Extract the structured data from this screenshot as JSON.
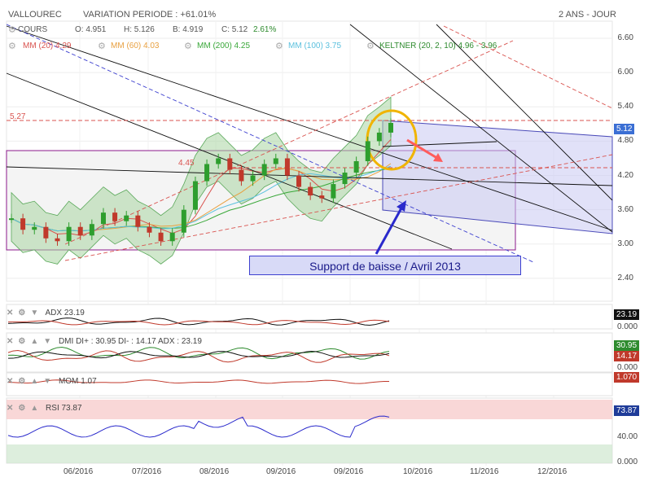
{
  "header": {
    "ticker": "VALLOUREC",
    "variation": "VARIATION PERIODE : +61.01%",
    "period": "2 ANS - JOUR",
    "cours_label": "COURS",
    "open": "O: 4.951",
    "high": "H: 5.126",
    "low": "B: 4.919",
    "close": "C: 5.12",
    "change": "2.61%"
  },
  "indicators": [
    {
      "label": "MM (20) 4.29",
      "color": "#d9534f"
    },
    {
      "label": "MM (60) 4.03",
      "color": "#e8a040"
    },
    {
      "label": "MM (200) 4.25",
      "color": "#3aa83a"
    },
    {
      "label": "MM (100) 3.75",
      "color": "#5bc0de"
    },
    {
      "label": "KELTNER (20, 2, 10) 4.96 - 3.96",
      "color": "#2e8b2e"
    }
  ],
  "annotations": {
    "level_527": "5.27",
    "level_445": "4.45",
    "callout": "Support de baisse / Avril 2013"
  },
  "price_tag": "5.12",
  "panes": {
    "adx": {
      "label": "ADX",
      "value": "23.19",
      "tag": "23.19",
      "zero": "0.000"
    },
    "dmi": {
      "label": "DMI",
      "text": "DI+ : 30.95 DI- : 14.17 ADX : 23.19",
      "tag_plus": "30.95",
      "tag_minus": "14.17",
      "zero": "0.000"
    },
    "mom": {
      "label": "MOM",
      "value": "1.07",
      "tag": "1.070"
    },
    "rsi": {
      "label": "RSI",
      "value": "73.87",
      "tag": "73.87",
      "mid": "40.00",
      "zero": "0.000"
    }
  },
  "chart_data": {
    "type": "line",
    "title": "VALLOUREC",
    "ylim": [
      2.0,
      6.9
    ],
    "y_ticks": [
      "6.60",
      "6.00",
      "5.40",
      "4.80",
      "4.20",
      "3.60",
      "3.00",
      "2.40"
    ],
    "x_ticks": [
      "06/2016",
      "07/2016",
      "08/2016",
      "09/2016",
      "09/2016",
      "10/2016",
      "11/2016",
      "12/2016"
    ],
    "series": [
      {
        "name": "COURS",
        "values": [
          3.45,
          3.25,
          3.3,
          3.1,
          3.05,
          3.3,
          3.15,
          3.35,
          3.55,
          3.4,
          3.5,
          3.3,
          3.2,
          3.05,
          3.2,
          3.6,
          4.1,
          4.4,
          4.5,
          4.3,
          4.1,
          4.2,
          4.4,
          4.5,
          4.2,
          4.0,
          3.85,
          3.8,
          4.05,
          4.25,
          4.45,
          4.8,
          4.95,
          5.12
        ]
      }
    ]
  }
}
